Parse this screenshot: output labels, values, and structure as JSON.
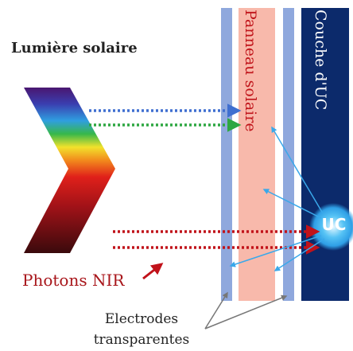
{
  "labels": {
    "sunlight": "Lumière solaire",
    "nir_photons": "Photons NIR",
    "electrodes_line1": "Electrodes",
    "electrodes_line2": "transparentes",
    "solar_panel": "Panneau solaire",
    "uc_layer": "Couche d'UC",
    "uc": "UC"
  },
  "colors": {
    "electrode": "#8fa8dd",
    "solar_panel_fill": "#f8b9ab",
    "uc_layer_fill": "#0c2a6b",
    "uc_glow": "#3fb3f2",
    "blue_arrow": "#3f6fd0",
    "green_arrow": "#2ea742",
    "red_arrow": "#c1121a",
    "emission_arrow": "#3aa8ea",
    "nir_label_color": "#a8161b"
  }
}
